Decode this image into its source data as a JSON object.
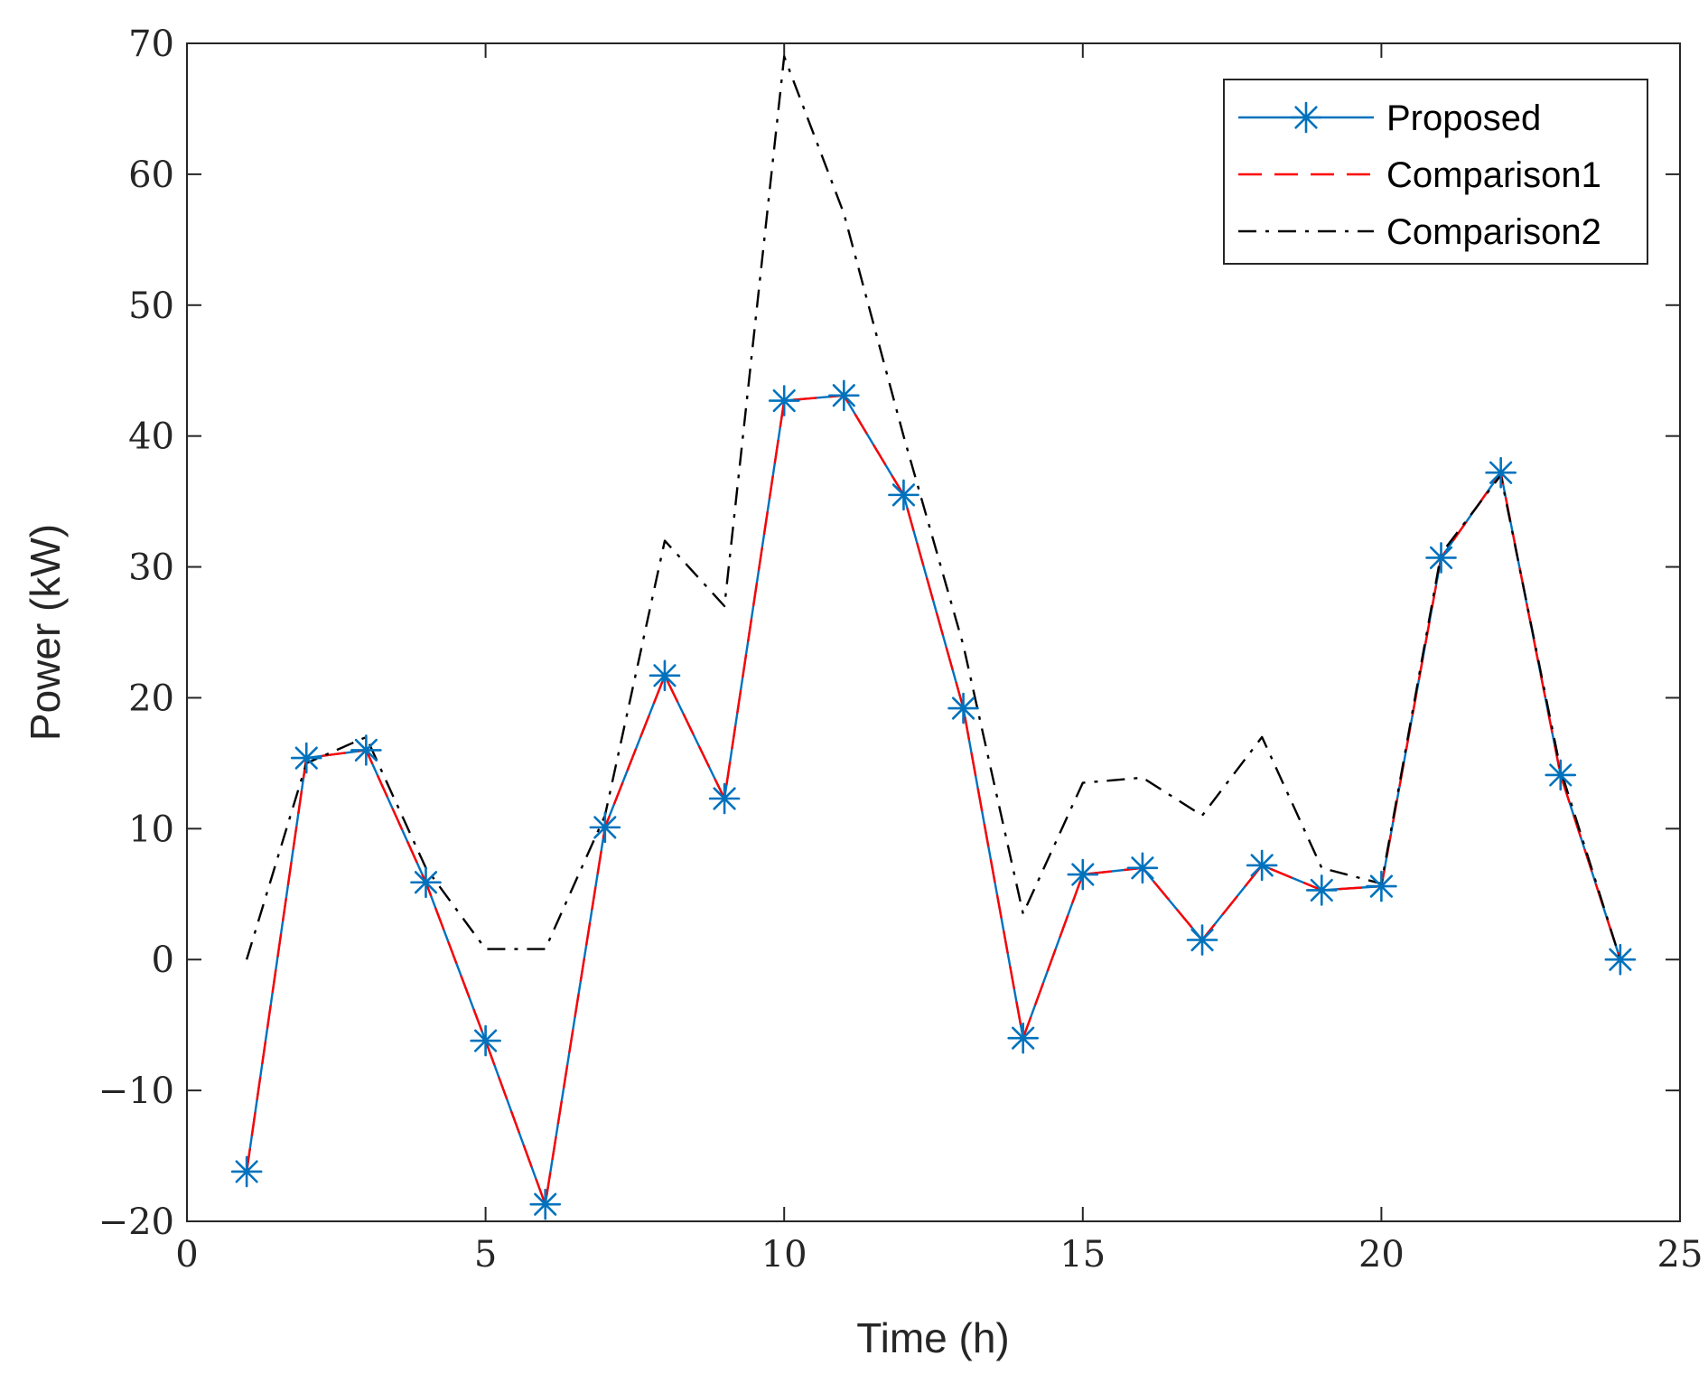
{
  "chart_data": {
    "type": "line",
    "title": "",
    "xlabel": "Time (h)",
    "ylabel": "Power (kW)",
    "xlim": [
      0,
      25
    ],
    "ylim": [
      -20,
      70
    ],
    "xticks": [
      0,
      5,
      10,
      15,
      20,
      25
    ],
    "xtick_labels": [
      "0",
      "5",
      "10",
      "15",
      "20",
      "25"
    ],
    "yticks": [
      -20,
      -10,
      0,
      10,
      20,
      30,
      40,
      50,
      60,
      70
    ],
    "ytick_labels": [
      "−20",
      "−10",
      "0",
      "10",
      "20",
      "30",
      "40",
      "50",
      "60",
      "70"
    ],
    "grid": false,
    "legend_position": "top-right",
    "x": [
      1,
      2,
      3,
      4,
      5,
      6,
      7,
      8,
      9,
      10,
      11,
      12,
      13,
      14,
      15,
      16,
      17,
      18,
      19,
      20,
      21,
      22,
      23,
      24
    ],
    "series": [
      {
        "name": "Proposed",
        "color": "#0072BD",
        "style": "solid",
        "marker": "asterisk",
        "values": [
          -16.2,
          15.4,
          16,
          5.9,
          -6.2,
          -18.7,
          10.1,
          21.7,
          12.3,
          42.7,
          43.1,
          35.5,
          19.2,
          -6,
          6.5,
          7,
          1.5,
          7.2,
          5.3,
          5.6,
          30.7,
          37.2,
          14.1,
          0
        ]
      },
      {
        "name": "Comparison1",
        "color": "#FF0000",
        "style": "dashed",
        "marker": "none",
        "values": [
          -16.2,
          15.4,
          16,
          5.9,
          -6.2,
          -18.7,
          10.1,
          21.7,
          12.3,
          42.7,
          43.1,
          35.5,
          19.2,
          -6,
          6.5,
          7,
          1.5,
          7.2,
          5.3,
          5.6,
          30.7,
          37.2,
          14.1,
          0
        ]
      },
      {
        "name": "Comparison2",
        "color": "#000000",
        "style": "dashdot",
        "marker": "none",
        "values": [
          0,
          15,
          17,
          7,
          0.8,
          0.8,
          11,
          32,
          27,
          69,
          57,
          40,
          24,
          3.5,
          13.5,
          13.9,
          11,
          17,
          7,
          5.8,
          31,
          37,
          14.5,
          0
        ]
      }
    ]
  }
}
